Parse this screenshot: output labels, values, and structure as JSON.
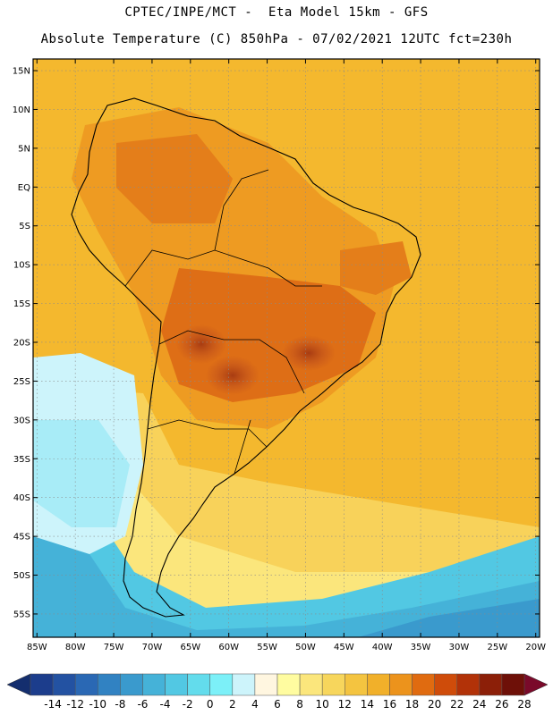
{
  "header": {
    "line1": "CPTEC/INPE/MCT -  Eta Model 15km - GFS",
    "line2": "Absolute Temperature (C) 850hPa - 07/02/2021 12UTC fct=230h"
  },
  "map": {
    "lat_labels": [
      "15N",
      "10N",
      "5N",
      "EQ",
      "5S",
      "10S",
      "15S",
      "20S",
      "25S",
      "30S",
      "35S",
      "40S",
      "45S",
      "50S",
      "55S"
    ],
    "lon_labels": [
      "85W",
      "80W",
      "75W",
      "70W",
      "65W",
      "60W",
      "55W",
      "50W",
      "45W",
      "40W",
      "35W",
      "30W",
      "25W",
      "20W"
    ],
    "lat_values": [
      15,
      10,
      5,
      0,
      -5,
      -10,
      -15,
      -20,
      -25,
      -30,
      -35,
      -40,
      -45,
      -50,
      -55
    ],
    "lon_values": [
      -85,
      -80,
      -75,
      -70,
      -65,
      -60,
      -55,
      -50,
      -45,
      -40,
      -35,
      -30,
      -25,
      -20
    ],
    "extent": {
      "lon_min": -85.5,
      "lon_max": -19.5,
      "lat_min": -58,
      "lat_max": 16.5
    }
  },
  "colorbar": {
    "labels": [
      "-14",
      "-12",
      "-10",
      "-8",
      "-6",
      "-4",
      "-2",
      "0",
      "2",
      "4",
      "6",
      "8",
      "10",
      "12",
      "14",
      "16",
      "18",
      "20",
      "22",
      "24",
      "26",
      "28"
    ],
    "colors": [
      "#1c3d8c",
      "#2352a2",
      "#2a68b4",
      "#3182c2",
      "#3a9acd",
      "#45b2d8",
      "#52c8e3",
      "#63dcec",
      "#7cf0f8",
      "#cdf4fb",
      "#fff6e0",
      "#fffca0",
      "#fbe67c",
      "#f7d65c",
      "#f4c440",
      "#f1b02a",
      "#ec931c",
      "#e06b10",
      "#cf4c0a",
      "#b23208",
      "#8c1f08",
      "#6e1008"
    ],
    "left_arrow_color": "#142e6e",
    "right_arrow_color": "#7a0a2a"
  }
}
